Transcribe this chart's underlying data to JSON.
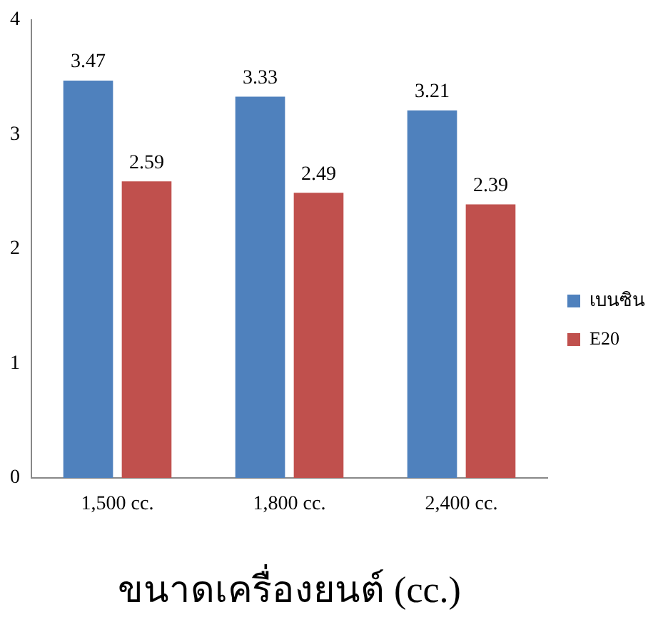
{
  "chart_data": {
    "type": "bar",
    "xlabel": "ขนาดเครื่องยนต์ (cc.)",
    "categories": [
      "1,500 cc.",
      "1,800 cc.",
      "2,400 cc."
    ],
    "series": [
      {
        "name": "เบนซิน",
        "color": "#4f81bd",
        "values": [
          3.47,
          3.33,
          3.21
        ]
      },
      {
        "name": "E20",
        "color": "#c0504d",
        "values": [
          2.59,
          2.49,
          2.39
        ]
      }
    ],
    "ylim": [
      0,
      4
    ],
    "yticks": [
      0,
      1,
      2,
      3,
      4
    ],
    "grid": false,
    "legend": "right",
    "data_labels": true
  }
}
